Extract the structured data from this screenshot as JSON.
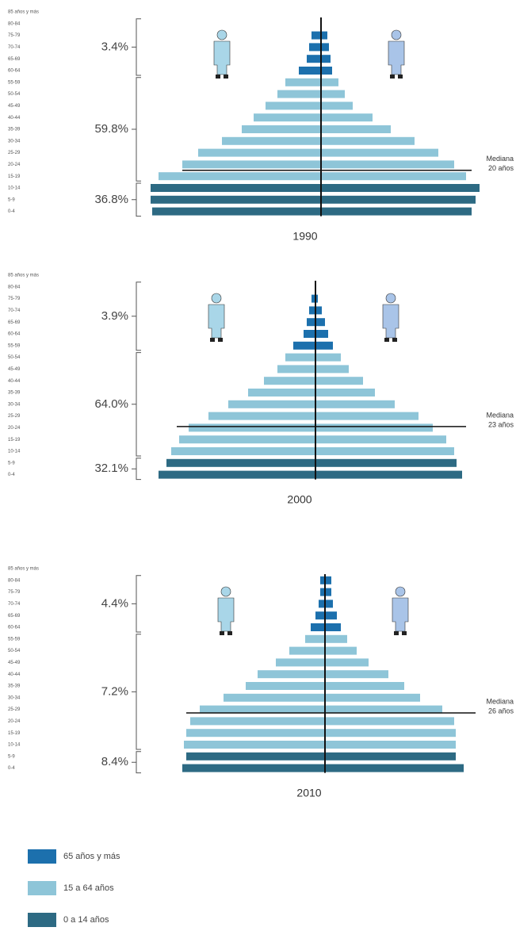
{
  "chart_data": [
    {
      "type": "pyramid",
      "title": "1990",
      "categories": [
        "85 años y más",
        "80-84",
        "75-79",
        "70-74",
        "65-69",
        "60-64",
        "55-59",
        "50-54",
        "45-49",
        "40-44",
        "35-39",
        "30-34",
        "25-29",
        "20-24",
        "15-19",
        "10-14",
        "5-9",
        "0-4"
      ],
      "category_group": [
        0,
        0,
        0,
        0,
        0,
        0,
        1,
        1,
        1,
        1,
        1,
        1,
        1,
        1,
        1,
        2,
        2,
        2
      ],
      "series": [
        {
          "values": [
            null,
            null,
            12,
            15,
            18,
            28,
            45,
            55,
            70,
            85,
            100,
            125,
            155,
            175,
            205,
            215,
            215,
            213
          ]
        },
        {
          "values": [
            null,
            null,
            8,
            10,
            12,
            14,
            22,
            30,
            40,
            65,
            88,
            118,
            148,
            168,
            183,
            200,
            195,
            190
          ]
        }
      ],
      "xlim": [
        0,
        220
      ],
      "shares": [
        3.4,
        59.8,
        36.8
      ],
      "share_labels": [
        "3.4%",
        "59.8%",
        "36.8%"
      ],
      "median": 20,
      "median_title": "Mediana",
      "median_label": "20 años"
    },
    {
      "type": "pyramid",
      "title": "2000",
      "categories": [
        "85 años y más",
        "80-84",
        "75-79",
        "70-74",
        "65-69",
        "60-64",
        "55-59",
        "50-54",
        "45-49",
        "40-44",
        "35-39",
        "30-34",
        "25-29",
        "20-24",
        "15-19",
        "10-14",
        "5-9",
        "0-4"
      ],
      "category_group": [
        0,
        0,
        0,
        0,
        0,
        0,
        0,
        1,
        1,
        1,
        1,
        1,
        1,
        1,
        1,
        1,
        2,
        2
      ],
      "series": [
        {
          "values": [
            null,
            null,
            5,
            8,
            11,
            15,
            28,
            38,
            48,
            65,
            85,
            110,
            135,
            160,
            172,
            182,
            188,
            198
          ]
        },
        {
          "values": [
            null,
            null,
            3,
            8,
            12,
            16,
            22,
            32,
            42,
            60,
            75,
            100,
            130,
            148,
            165,
            175,
            178,
            185
          ]
        }
      ],
      "xlim": [
        0,
        220
      ],
      "shares": [
        3.9,
        64.0,
        32.1
      ],
      "share_labels": [
        "3.9%",
        "64.0%",
        "32.1%"
      ],
      "median": 23,
      "median_title": "Mediana",
      "median_label": "23 años"
    },
    {
      "type": "pyramid",
      "title": "2010",
      "categories": [
        "85 años y más",
        "80-84",
        "75-79",
        "70-74",
        "65-69",
        "60-64",
        "55-59",
        "50-54",
        "45-49",
        "40-44",
        "35-39",
        "30-34",
        "25-29",
        "20-24",
        "15-19",
        "10-14",
        "5-9",
        "0-4"
      ],
      "category_group": [
        0,
        0,
        0,
        0,
        0,
        0,
        1,
        1,
        1,
        1,
        1,
        1,
        1,
        1,
        1,
        1,
        2,
        2
      ],
      "series": [
        {
          "values": [
            null,
            6,
            6,
            8,
            12,
            18,
            25,
            45,
            62,
            85,
            100,
            128,
            158,
            170,
            175,
            178,
            175,
            180
          ]
        },
        {
          "values": [
            null,
            8,
            8,
            10,
            15,
            20,
            28,
            40,
            55,
            80,
            100,
            120,
            148,
            163,
            165,
            165,
            165,
            175
          ]
        }
      ],
      "xlim": [
        0,
        220
      ],
      "shares": [
        4.4,
        7.2,
        8.4
      ],
      "share_labels": [
        "4.4%",
        "7.2%",
        "8.4%"
      ],
      "median": 26,
      "median_title": "Mediana",
      "median_label": "26 años"
    }
  ],
  "legend": [
    {
      "name": "65 años y más",
      "color": "#1c70ad"
    },
    {
      "name": "15 a 64 años",
      "color": "#8ec5d8"
    },
    {
      "name": "0 a 14 años",
      "color": "#2d6a83"
    }
  ]
}
